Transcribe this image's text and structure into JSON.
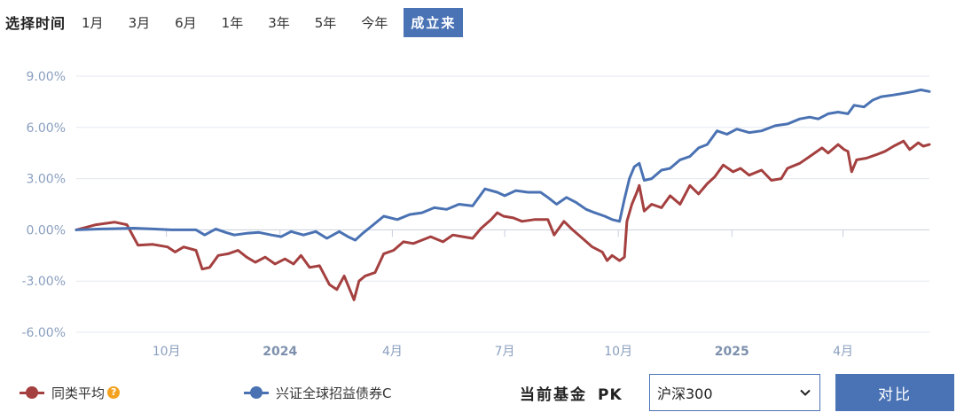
{
  "range": {
    "label": "选择时间",
    "options": [
      "1月",
      "3月",
      "6月",
      "1年",
      "3年",
      "5年",
      "今年",
      "成立来"
    ],
    "active": "成立来"
  },
  "chart_data": {
    "type": "line",
    "title": "",
    "xlabel": "",
    "ylabel": "",
    "ylim": [
      -6,
      9
    ],
    "y_ticks": [
      9,
      6,
      3,
      0,
      -3,
      -6
    ],
    "y_tick_labels": [
      "9.00%",
      "6.00%",
      "3.00%",
      "0.00%",
      "-3.00%",
      "-6.00%"
    ],
    "x_range": [
      "2023-07-20",
      "2025-06-10"
    ],
    "x_ticks": [
      {
        "date": "2023-10-01",
        "label": "10月",
        "bold": false
      },
      {
        "date": "2024-01-01",
        "label": "2024",
        "bold": true
      },
      {
        "date": "2024-04-01",
        "label": "4月",
        "bold": false
      },
      {
        "date": "2024-07-01",
        "label": "7月",
        "bold": false
      },
      {
        "date": "2024-10-01",
        "label": "10月",
        "bold": false
      },
      {
        "date": "2025-01-01",
        "label": "2025",
        "bold": true
      },
      {
        "date": "2025-04-01",
        "label": "4月",
        "bold": false
      }
    ],
    "grid": true,
    "legend_placement": "bottom-left",
    "series": [
      {
        "name": "同类平均",
        "color": "#a4403f",
        "points": [
          [
            "2023-07-20",
            0.0
          ],
          [
            "2023-08-05",
            0.3
          ],
          [
            "2023-08-20",
            0.45
          ],
          [
            "2023-08-30",
            0.3
          ],
          [
            "2023-09-08",
            -0.9
          ],
          [
            "2023-09-20",
            -0.85
          ],
          [
            "2023-10-02",
            -1.0
          ],
          [
            "2023-10-08",
            -1.3
          ],
          [
            "2023-10-15",
            -1.0
          ],
          [
            "2023-10-25",
            -1.2
          ],
          [
            "2023-10-30",
            -2.3
          ],
          [
            "2023-11-05",
            -2.2
          ],
          [
            "2023-11-12",
            -1.5
          ],
          [
            "2023-11-20",
            -1.4
          ],
          [
            "2023-11-28",
            -1.2
          ],
          [
            "2023-12-05",
            -1.6
          ],
          [
            "2023-12-12",
            -1.9
          ],
          [
            "2023-12-20",
            -1.6
          ],
          [
            "2023-12-28",
            -2.0
          ],
          [
            "2024-01-05",
            -1.7
          ],
          [
            "2024-01-12",
            -2.0
          ],
          [
            "2024-01-18",
            -1.5
          ],
          [
            "2024-01-25",
            -2.2
          ],
          [
            "2024-02-02",
            -2.1
          ],
          [
            "2024-02-10",
            -3.2
          ],
          [
            "2024-02-16",
            -3.5
          ],
          [
            "2024-02-22",
            -2.7
          ],
          [
            "2024-03-01",
            -4.1
          ],
          [
            "2024-03-05",
            -3.0
          ],
          [
            "2024-03-10",
            -2.7
          ],
          [
            "2024-03-18",
            -2.5
          ],
          [
            "2024-03-25",
            -1.4
          ],
          [
            "2024-04-02",
            -1.2
          ],
          [
            "2024-04-10",
            -0.7
          ],
          [
            "2024-04-18",
            -0.8
          ],
          [
            "2024-04-25",
            -0.6
          ],
          [
            "2024-05-02",
            -0.4
          ],
          [
            "2024-05-12",
            -0.7
          ],
          [
            "2024-05-20",
            -0.3
          ],
          [
            "2024-05-28",
            -0.4
          ],
          [
            "2024-06-05",
            -0.5
          ],
          [
            "2024-06-12",
            0.1
          ],
          [
            "2024-06-20",
            0.6
          ],
          [
            "2024-06-25",
            1.0
          ],
          [
            "2024-06-30",
            0.8
          ],
          [
            "2024-07-08",
            0.7
          ],
          [
            "2024-07-15",
            0.5
          ],
          [
            "2024-07-25",
            0.6
          ],
          [
            "2024-08-05",
            0.6
          ],
          [
            "2024-08-10",
            -0.3
          ],
          [
            "2024-08-18",
            0.5
          ],
          [
            "2024-08-25",
            0.0
          ],
          [
            "2024-09-02",
            -0.5
          ],
          [
            "2024-09-10",
            -1.0
          ],
          [
            "2024-09-18",
            -1.3
          ],
          [
            "2024-09-22",
            -1.8
          ],
          [
            "2024-09-26",
            -1.5
          ],
          [
            "2024-10-02",
            -1.8
          ],
          [
            "2024-10-06",
            -1.6
          ],
          [
            "2024-10-08",
            0.5
          ],
          [
            "2024-10-12",
            1.5
          ],
          [
            "2024-10-16",
            2.2
          ],
          [
            "2024-10-18",
            2.6
          ],
          [
            "2024-10-22",
            1.1
          ],
          [
            "2024-10-28",
            1.5
          ],
          [
            "2024-11-05",
            1.3
          ],
          [
            "2024-11-12",
            2.0
          ],
          [
            "2024-11-20",
            1.5
          ],
          [
            "2024-11-28",
            2.6
          ],
          [
            "2024-12-05",
            2.1
          ],
          [
            "2024-12-12",
            2.7
          ],
          [
            "2024-12-18",
            3.1
          ],
          [
            "2024-12-25",
            3.8
          ],
          [
            "2025-01-02",
            3.4
          ],
          [
            "2025-01-08",
            3.6
          ],
          [
            "2025-01-15",
            3.2
          ],
          [
            "2025-01-25",
            3.5
          ],
          [
            "2025-02-02",
            2.9
          ],
          [
            "2025-02-10",
            3.0
          ],
          [
            "2025-02-15",
            3.6
          ],
          [
            "2025-02-25",
            3.9
          ],
          [
            "2025-03-05",
            4.3
          ],
          [
            "2025-03-15",
            4.8
          ],
          [
            "2025-03-20",
            4.5
          ],
          [
            "2025-03-28",
            5.0
          ],
          [
            "2025-04-02",
            4.7
          ],
          [
            "2025-04-05",
            4.6
          ],
          [
            "2025-04-08",
            3.4
          ],
          [
            "2025-04-12",
            4.1
          ],
          [
            "2025-04-20",
            4.2
          ],
          [
            "2025-04-28",
            4.4
          ],
          [
            "2025-05-05",
            4.6
          ],
          [
            "2025-05-12",
            4.9
          ],
          [
            "2025-05-20",
            5.2
          ],
          [
            "2025-05-25",
            4.7
          ],
          [
            "2025-06-01",
            5.1
          ],
          [
            "2025-06-05",
            4.9
          ],
          [
            "2025-06-10",
            5.0
          ]
        ]
      },
      {
        "name": "兴证全球招益债券C",
        "color": "#4a72b3",
        "points": [
          [
            "2023-07-20",
            0.0
          ],
          [
            "2023-08-10",
            0.05
          ],
          [
            "2023-09-05",
            0.1
          ],
          [
            "2023-09-20",
            0.05
          ],
          [
            "2023-10-05",
            0.0
          ],
          [
            "2023-10-25",
            0.0
          ],
          [
            "2023-11-01",
            -0.3
          ],
          [
            "2023-11-10",
            0.05
          ],
          [
            "2023-11-18",
            -0.15
          ],
          [
            "2023-11-25",
            -0.3
          ],
          [
            "2023-12-05",
            -0.2
          ],
          [
            "2023-12-15",
            -0.15
          ],
          [
            "2023-12-25",
            -0.3
          ],
          [
            "2024-01-02",
            -0.4
          ],
          [
            "2024-01-10",
            -0.1
          ],
          [
            "2024-01-20",
            -0.3
          ],
          [
            "2024-01-30",
            -0.1
          ],
          [
            "2024-02-08",
            -0.5
          ],
          [
            "2024-02-18",
            -0.1
          ],
          [
            "2024-02-25",
            -0.4
          ],
          [
            "2024-03-02",
            -0.6
          ],
          [
            "2024-03-08",
            -0.2
          ],
          [
            "2024-03-15",
            0.2
          ],
          [
            "2024-03-25",
            0.8
          ],
          [
            "2024-04-05",
            0.6
          ],
          [
            "2024-04-15",
            0.9
          ],
          [
            "2024-04-25",
            1.0
          ],
          [
            "2024-05-05",
            1.3
          ],
          [
            "2024-05-15",
            1.2
          ],
          [
            "2024-05-25",
            1.5
          ],
          [
            "2024-06-05",
            1.4
          ],
          [
            "2024-06-15",
            2.4
          ],
          [
            "2024-06-25",
            2.2
          ],
          [
            "2024-07-01",
            2.0
          ],
          [
            "2024-07-10",
            2.3
          ],
          [
            "2024-07-20",
            2.2
          ],
          [
            "2024-07-30",
            2.2
          ],
          [
            "2024-08-05",
            1.9
          ],
          [
            "2024-08-12",
            1.5
          ],
          [
            "2024-08-20",
            1.9
          ],
          [
            "2024-08-28",
            1.6
          ],
          [
            "2024-09-05",
            1.2
          ],
          [
            "2024-09-12",
            1.0
          ],
          [
            "2024-09-20",
            0.8
          ],
          [
            "2024-09-26",
            0.6
          ],
          [
            "2024-10-02",
            0.5
          ],
          [
            "2024-10-06",
            1.8
          ],
          [
            "2024-10-10",
            3.0
          ],
          [
            "2024-10-14",
            3.7
          ],
          [
            "2024-10-18",
            3.9
          ],
          [
            "2024-10-22",
            2.9
          ],
          [
            "2024-10-28",
            3.0
          ],
          [
            "2024-11-05",
            3.5
          ],
          [
            "2024-11-12",
            3.6
          ],
          [
            "2024-11-20",
            4.1
          ],
          [
            "2024-11-28",
            4.3
          ],
          [
            "2024-12-05",
            4.8
          ],
          [
            "2024-12-12",
            5.0
          ],
          [
            "2024-12-20",
            5.8
          ],
          [
            "2024-12-28",
            5.6
          ],
          [
            "2025-01-05",
            5.9
          ],
          [
            "2025-01-15",
            5.7
          ],
          [
            "2025-01-25",
            5.8
          ],
          [
            "2025-02-05",
            6.1
          ],
          [
            "2025-02-15",
            6.2
          ],
          [
            "2025-02-25",
            6.5
          ],
          [
            "2025-03-05",
            6.6
          ],
          [
            "2025-03-12",
            6.5
          ],
          [
            "2025-03-20",
            6.8
          ],
          [
            "2025-03-28",
            6.9
          ],
          [
            "2025-04-05",
            6.8
          ],
          [
            "2025-04-10",
            7.3
          ],
          [
            "2025-04-18",
            7.2
          ],
          [
            "2025-04-25",
            7.6
          ],
          [
            "2025-05-02",
            7.8
          ],
          [
            "2025-05-12",
            7.9
          ],
          [
            "2025-05-20",
            8.0
          ],
          [
            "2025-05-28",
            8.1
          ],
          [
            "2025-06-03",
            8.2
          ],
          [
            "2025-06-10",
            8.1
          ]
        ]
      }
    ]
  },
  "legend": {
    "items": [
      {
        "name": "同类平均",
        "color": "#a4403f",
        "has_info": true,
        "info_glyph": "?"
      },
      {
        "name": "兴证全球招益债券C",
        "color": "#4a72b3",
        "has_info": false
      }
    ]
  },
  "pk": {
    "label": "当前基金",
    "tag": "PK",
    "select_value": "沪深300",
    "compare_label": "对比"
  }
}
